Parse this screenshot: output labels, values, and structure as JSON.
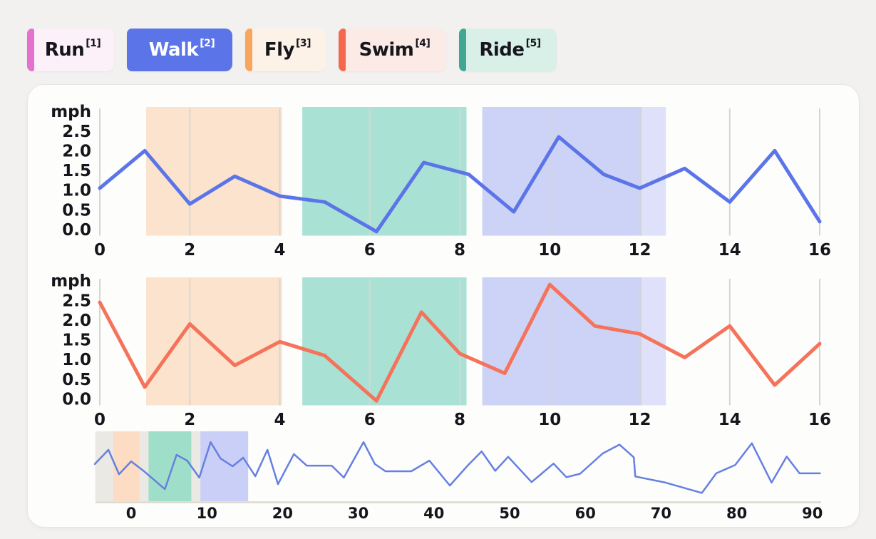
{
  "theme": {
    "page_bg": "#f2f1ef",
    "card_bg": "#fdfdfc",
    "card_border": "#e8e6e2",
    "grid_color": "#d9d5ce",
    "axis_text": "#16151b",
    "baseline_color": "#dcd8d0"
  },
  "legend": {
    "items": [
      {
        "label": "Run",
        "sup": "[1]",
        "accent": "#e570cf",
        "bg": "#fcf0f9",
        "text": "#17161c",
        "selected": false
      },
      {
        "label": "Walk",
        "sup": "[2]",
        "accent": "#5b74e8",
        "bg": "#5b74e8",
        "text": "#ffffff",
        "selected": true
      },
      {
        "label": "Fly",
        "sup": "[3]",
        "accent": "#f9a55b",
        "bg": "#fdf2e8",
        "text": "#17161c",
        "selected": false
      },
      {
        "label": "Swim",
        "sup": "[4]",
        "accent": "#f4694e",
        "bg": "#fbeae5",
        "text": "#17161c",
        "selected": false
      },
      {
        "label": "Ride",
        "sup": "[5]",
        "accent": "#41a795",
        "bg": "#d9f0e8",
        "text": "#17161c",
        "selected": false
      }
    ]
  },
  "chart_data": [
    {
      "type": "line",
      "name": "walk",
      "ylabel": "mph",
      "yticks": [
        "2.5",
        "2.0",
        "1.5",
        "1.0",
        "0.5",
        "0.0"
      ],
      "xticks": [
        0,
        2,
        4,
        6,
        8,
        10,
        12,
        14,
        16
      ],
      "xlim": [
        -0.1,
        16.1
      ],
      "ylim": [
        -0.15,
        3.1
      ],
      "grid": "vertical",
      "color": "#5b74e8",
      "x": [
        0,
        1,
        2,
        3,
        4,
        5,
        6.15,
        7.2,
        8.2,
        9.2,
        10.2,
        11.2,
        12,
        13,
        14,
        15,
        16
      ],
      "values": [
        1.05,
        2.0,
        0.65,
        1.35,
        0.85,
        0.7,
        -0.05,
        1.7,
        1.4,
        0.45,
        2.35,
        1.4,
        1.05,
        1.55,
        0.7,
        2.0,
        0.2
      ],
      "regions": [
        {
          "name": "orange",
          "from": 1.03,
          "to": 4.05,
          "color": "#fce3cd"
        },
        {
          "name": "teal",
          "from": 4.5,
          "to": 8.15,
          "color": "#a9e2d5"
        },
        {
          "name": "purple",
          "from": 8.5,
          "to": 12.05,
          "color": "#cdd3f6"
        },
        {
          "name": "purple-light",
          "from": 12.05,
          "to": 12.58,
          "color": "#dee1f9"
        }
      ]
    },
    {
      "type": "line",
      "name": "swim",
      "ylabel": "mph",
      "yticks": [
        "2.5",
        "2.0",
        "1.5",
        "1.0",
        "0.5",
        "0.0"
      ],
      "xticks": [
        0,
        2,
        4,
        6,
        8,
        10,
        12,
        14,
        16
      ],
      "xlim": [
        -0.1,
        16.1
      ],
      "ylim": [
        -0.15,
        3.1
      ],
      "grid": "vertical",
      "color": "#f4735a",
      "x": [
        0,
        1,
        2,
        3,
        4,
        5,
        6.15,
        7.15,
        8,
        9,
        10,
        11,
        12,
        13,
        14,
        15,
        16
      ],
      "values": [
        2.45,
        0.3,
        1.9,
        0.85,
        1.45,
        1.1,
        -0.05,
        2.2,
        1.15,
        0.65,
        2.9,
        1.85,
        1.65,
        1.05,
        1.85,
        0.35,
        1.4
      ],
      "regions": [
        {
          "name": "orange",
          "from": 1.03,
          "to": 4.05,
          "color": "#fce3cd"
        },
        {
          "name": "teal",
          "from": 4.5,
          "to": 8.15,
          "color": "#a9e2d5"
        },
        {
          "name": "purple",
          "from": 8.5,
          "to": 12.05,
          "color": "#cdd3f6"
        },
        {
          "name": "purple-light",
          "from": 12.05,
          "to": 12.58,
          "color": "#dee1f9"
        }
      ]
    },
    {
      "type": "line",
      "name": "overview",
      "ylabel": "",
      "yticks": [],
      "xticks": [
        0,
        10,
        20,
        30,
        40,
        50,
        60,
        70,
        80,
        90
      ],
      "xlim": [
        -4.75,
        91.2
      ],
      "ylim": [
        0,
        3.1
      ],
      "grid": "none",
      "color": "#6580e0",
      "x": [
        -4.8,
        -3.0,
        -1.6,
        0,
        1.6,
        4.45,
        6.0,
        7.4,
        9.0,
        10.5,
        11.8,
        13.4,
        14.8,
        16.4,
        18.0,
        19.4,
        21.5,
        23.2,
        26.5,
        28.1,
        30.7,
        32.2,
        33.6,
        37.0,
        39.4,
        42.1,
        44.5,
        46.3,
        48.1,
        49.8,
        52.9,
        55.8,
        57.5,
        59.3,
        62.3,
        64.5,
        66.4,
        66.6,
        70.6,
        75.4,
        77.3,
        79.8,
        82.0,
        84.6,
        86.6,
        88.3,
        91.0
      ],
      "values": [
        1.55,
        2.18,
        1.1,
        1.67,
        1.26,
        0.44,
        1.96,
        1.7,
        0.95,
        2.52,
        1.8,
        1.45,
        1.83,
        1.01,
        2.18,
        0.66,
        1.99,
        1.48,
        1.48,
        0.95,
        2.52,
        1.55,
        1.23,
        1.23,
        1.7,
        0.6,
        1.5,
        2.11,
        1.25,
        1.87,
        0.75,
        1.57,
        0.97,
        1.12,
        2.02,
        2.41,
        1.85,
        1.0,
        0.73,
        0.27,
        1.14,
        1.51,
        2.47,
        0.73,
        1.88,
        1.14,
        1.14
      ],
      "regions": [
        {
          "name": "window",
          "from": -4.75,
          "to": 15.45,
          "color": "#ebe9e3"
        },
        {
          "name": "orange",
          "from": -2.35,
          "to": 1.1,
          "color": "#fcdcc2"
        },
        {
          "name": "teal",
          "from": 2.3,
          "to": 7.95,
          "color": "#9fdfc9"
        },
        {
          "name": "purple",
          "from": 9.15,
          "to": 15.45,
          "color": "#c9cff6"
        }
      ]
    }
  ]
}
